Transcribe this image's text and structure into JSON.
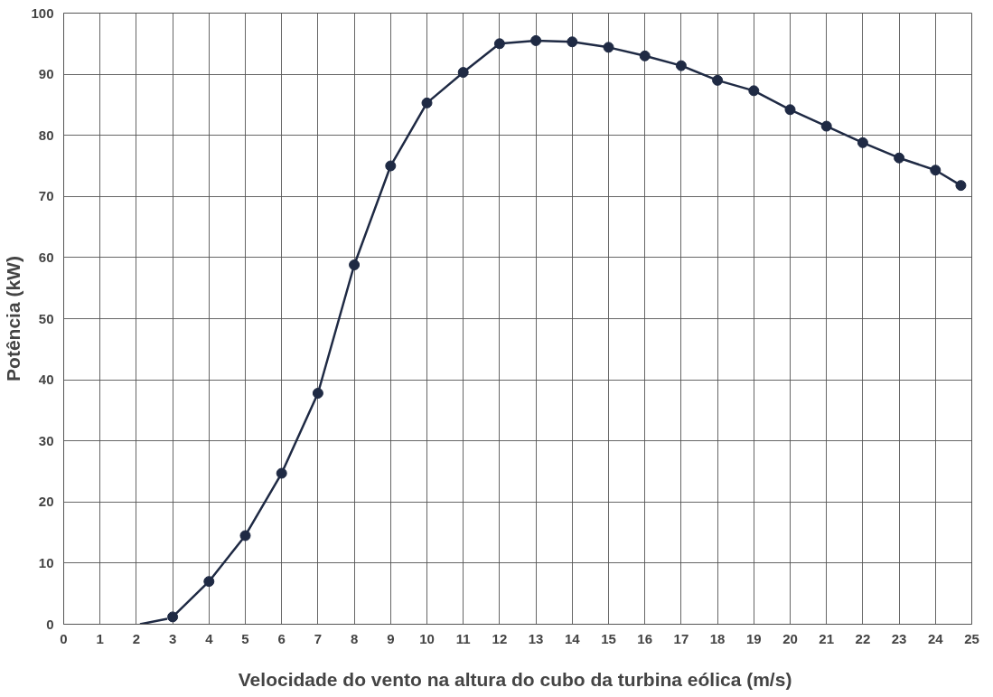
{
  "chart_data": {
    "type": "line",
    "xlabel": "Velocidade do vento na altura do cubo da turbina eólica  (m/s)",
    "ylabel": "Potência (kW)",
    "xlim": [
      0,
      25
    ],
    "ylim": [
      0,
      100
    ],
    "xticks": [
      0,
      1,
      2,
      3,
      4,
      5,
      6,
      7,
      8,
      9,
      10,
      11,
      12,
      13,
      14,
      15,
      16,
      17,
      18,
      19,
      20,
      21,
      22,
      23,
      24,
      25
    ],
    "yticks": [
      0,
      10,
      20,
      30,
      40,
      50,
      60,
      70,
      80,
      90,
      100
    ],
    "grid": true,
    "series": [
      {
        "color": "#1f2a44",
        "marker": "none",
        "x": [
          2.1,
          2.85
        ],
        "values": [
          0,
          0.9
        ]
      },
      {
        "color": "#1f2a44",
        "marker": "circle",
        "x": [
          3,
          4,
          5,
          6,
          7,
          8,
          9,
          10,
          11,
          12,
          13,
          14,
          15,
          16,
          17,
          18,
          19,
          20,
          21,
          22,
          23,
          24,
          24.7
        ],
        "values": [
          1.2,
          7,
          14.5,
          24.7,
          37.8,
          58.8,
          75,
          85.3,
          90.3,
          95,
          95.5,
          95.3,
          94.4,
          93,
          91.4,
          89,
          87.3,
          84.2,
          81.5,
          78.8,
          76.3,
          74.3,
          71.8
        ]
      }
    ]
  }
}
